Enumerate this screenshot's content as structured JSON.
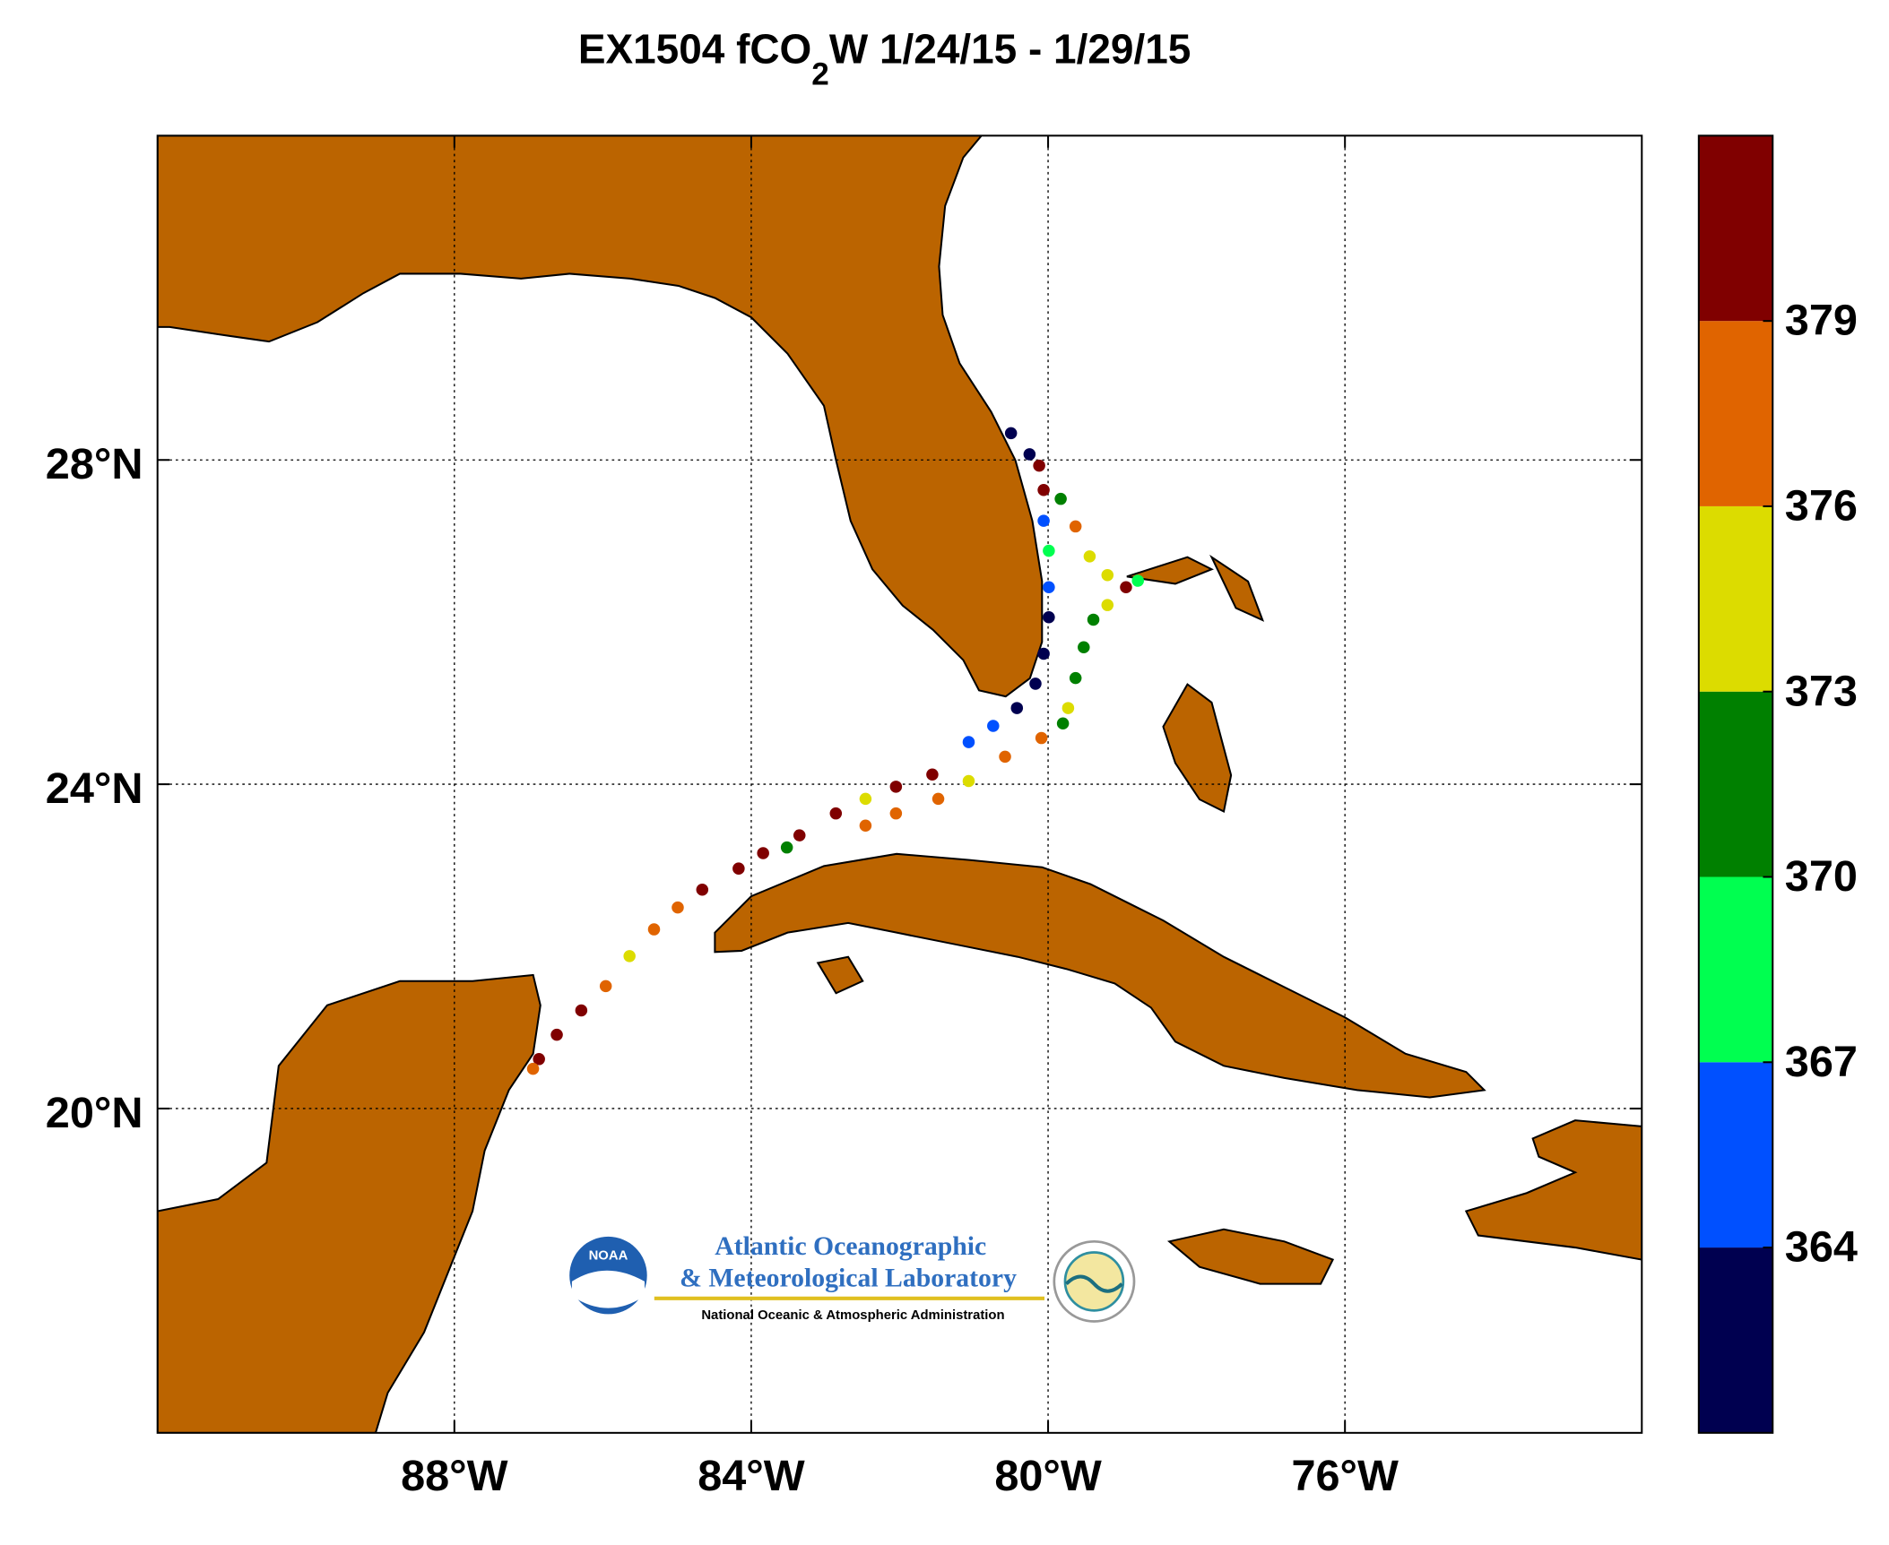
{
  "chart_data": {
    "type": "map",
    "title_parts": [
      "EX1504 fCO",
      "2",
      "W 1/24/15 - 1/29/15"
    ],
    "xlim": [
      -92,
      -72
    ],
    "ylim": [
      16,
      32
    ],
    "xticks": [
      {
        "value": -88,
        "label": "88°W"
      },
      {
        "value": -84,
        "label": "84°W"
      },
      {
        "value": -80,
        "label": "80°W"
      },
      {
        "value": -76,
        "label": "76°W"
      }
    ],
    "yticks": [
      {
        "value": 20,
        "label": "20°N"
      },
      {
        "value": 24,
        "label": "24°N"
      },
      {
        "value": 28,
        "label": "28°N"
      }
    ],
    "grid": true,
    "land_color": "#bb6400",
    "lon": [
      -80.5,
      -80.25,
      -80.12,
      -80.06,
      -80.06,
      -79.99,
      -79.99,
      -79.99,
      -80.06,
      -80.17,
      -80.42,
      -80.74,
      -81.07,
      -79.83,
      -79.63,
      -79.44,
      -79.2,
      -78.95,
      -78.79,
      -79.2,
      -79.39,
      -79.52,
      -79.63,
      -79.73,
      -79.8,
      -80.09,
      -80.58,
      -81.07,
      -81.48,
      -82.05,
      -82.46,
      -81.56,
      -82.05,
      -82.46,
      -82.86,
      -83.35,
      -83.84,
      -83.52,
      -84.17,
      -84.66,
      -84.99,
      -85.31,
      -85.64,
      -85.96,
      -86.29,
      -86.62,
      -86.86,
      -86.94
    ],
    "lat": [
      28.33,
      28.07,
      27.93,
      27.63,
      27.25,
      26.88,
      26.43,
      26.06,
      25.61,
      25.24,
      24.94,
      24.72,
      24.52,
      27.52,
      27.18,
      26.81,
      26.58,
      26.43,
      26.51,
      26.21,
      26.03,
      25.69,
      25.31,
      24.94,
      24.75,
      24.57,
      24.34,
      24.04,
      23.82,
      23.64,
      23.49,
      24.12,
      23.97,
      23.82,
      23.64,
      23.37,
      23.15,
      23.22,
      22.96,
      22.7,
      22.48,
      22.21,
      21.88,
      21.51,
      21.21,
      20.91,
      20.61,
      20.49
    ],
    "fco2w": [
      362,
      362,
      381,
      380,
      365,
      368,
      365,
      363,
      362,
      363,
      362,
      365,
      366,
      371,
      377,
      375,
      374,
      380,
      368,
      375,
      372,
      371,
      372,
      374,
      372,
      377,
      376,
      375,
      377,
      377,
      376,
      380,
      381,
      375,
      380,
      381,
      381,
      372,
      381,
      381,
      376,
      378,
      375,
      377,
      381,
      382,
      381,
      377
    ],
    "colorbar": {
      "lim": [
        361,
        382
      ],
      "ticks": [
        364,
        367,
        370,
        373,
        376,
        379
      ],
      "colors": [
        "#000050",
        "#0050ff",
        "#00ff50",
        "#008000",
        "#dcdc00",
        "#e06400",
        "#800000"
      ]
    },
    "logo": {
      "badge": "NOAA",
      "line1": "Atlantic Oceanographic",
      "line2": "& Meteorological Laboratory",
      "line3": "National Oceanic & Atmospheric Administration"
    }
  }
}
